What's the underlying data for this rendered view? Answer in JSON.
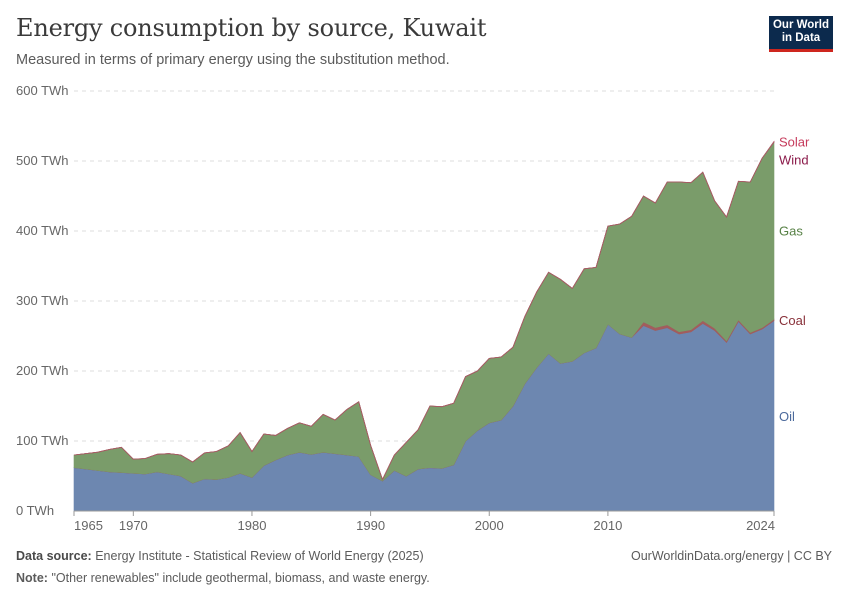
{
  "header": {
    "title": "Energy consumption by source, Kuwait",
    "subtitle": "Measured in terms of primary energy using the substitution method.",
    "logo_line1": "Our World",
    "logo_line2": "in Data"
  },
  "footer": {
    "source_label": "Data source:",
    "source_text": "Energy Institute - Statistical Review of World Energy (2025)",
    "note_label": "Note:",
    "note_text": "\"Other renewables\" include geothermal, biomass, and waste energy.",
    "credit": "OurWorldinData.org/energy | CC BY"
  },
  "chart_data": {
    "type": "area",
    "stacked": true,
    "title": "Energy consumption by source, Kuwait",
    "ylabel": "",
    "xlabel": "",
    "ylim": [
      0,
      600
    ],
    "xlim": [
      1965,
      2024
    ],
    "y_ticks": [
      0,
      100,
      200,
      300,
      400,
      500,
      600
    ],
    "y_tick_labels": [
      "0 TWh",
      "100 TWh",
      "200 TWh",
      "300 TWh",
      "400 TWh",
      "500 TWh",
      "600 TWh"
    ],
    "x_ticks": [
      1965,
      1970,
      1980,
      1990,
      2000,
      2010,
      2024
    ],
    "x_tick_labels": [
      "1965",
      "1970",
      "1980",
      "1990",
      "2000",
      "2010",
      "2024"
    ],
    "x": [
      1965,
      1966,
      1967,
      1968,
      1969,
      1970,
      1971,
      1972,
      1973,
      1974,
      1975,
      1976,
      1977,
      1978,
      1979,
      1980,
      1981,
      1982,
      1983,
      1984,
      1985,
      1986,
      1987,
      1988,
      1989,
      1990,
      1991,
      1992,
      1993,
      1994,
      1995,
      1996,
      1997,
      1998,
      1999,
      2000,
      2001,
      2002,
      2003,
      2004,
      2005,
      2006,
      2007,
      2008,
      2009,
      2010,
      2011,
      2012,
      2013,
      2014,
      2015,
      2016,
      2017,
      2018,
      2019,
      2020,
      2021,
      2022,
      2023,
      2024
    ],
    "series": [
      {
        "name": "Oil",
        "color": "#6d87b0",
        "label_color": "#4c6a9c",
        "values": [
          62,
          60,
          58,
          56,
          55,
          54,
          53,
          56,
          53,
          50,
          40,
          46,
          45,
          48,
          54,
          48,
          65,
          73,
          80,
          84,
          81,
          84,
          82,
          80,
          78,
          52,
          43,
          58,
          50,
          60,
          62,
          61,
          66,
          100,
          115,
          126,
          130,
          150,
          182,
          205,
          225,
          211,
          214,
          226,
          233,
          267,
          253,
          248,
          265,
          258,
          262,
          253,
          256,
          268,
          258,
          241,
          271,
          253,
          260,
          272
        ]
      },
      {
        "name": "Coal",
        "color": "#a25d5d",
        "label_color": "#883039",
        "values": [
          0,
          0,
          0,
          0,
          0,
          0,
          0,
          0,
          0,
          0,
          0,
          0,
          0,
          0,
          0,
          0,
          0,
          0,
          0,
          0,
          0,
          0,
          0,
          0,
          0,
          0,
          0,
          0,
          0,
          0,
          0,
          0,
          0,
          0,
          0,
          0,
          0,
          0,
          0,
          0,
          0,
          0,
          0,
          0,
          0,
          0,
          0,
          0,
          5,
          4,
          4,
          3,
          3,
          4,
          3,
          2,
          2,
          2,
          2,
          2
        ]
      },
      {
        "name": "Gas",
        "color": "#7a9c6a",
        "label_color": "#578145",
        "values": [
          18,
          22,
          26,
          32,
          36,
          20,
          22,
          25,
          29,
          30,
          30,
          37,
          40,
          45,
          58,
          37,
          45,
          35,
          38,
          42,
          40,
          54,
          48,
          65,
          78,
          42,
          2,
          22,
          48,
          56,
          88,
          88,
          88,
          92,
          85,
          92,
          90,
          84,
          96,
          108,
          116,
          120,
          104,
          120,
          115,
          140,
          157,
          173,
          180,
          178,
          204,
          214,
          210,
          212,
          182,
          177,
          198,
          215,
          242,
          253
        ]
      },
      {
        "name": "Wind",
        "color": "#8b1a4a",
        "label_color": "#8b1a4a",
        "values": [
          0,
          0,
          0,
          0,
          0,
          0,
          0,
          0,
          0,
          0,
          0,
          0,
          0,
          0,
          0,
          0,
          0,
          0,
          0,
          0,
          0,
          0,
          0,
          0,
          0,
          0,
          0,
          0,
          0,
          0,
          0,
          0,
          0,
          0,
          0,
          0,
          0,
          0,
          0,
          0,
          0,
          0,
          0,
          0,
          0,
          0,
          0,
          0,
          0,
          0,
          0,
          0,
          0,
          0,
          0,
          0,
          0,
          0,
          0,
          0.3
        ]
      },
      {
        "name": "Solar",
        "color": "#d26a85",
        "label_color": "#c63a5b",
        "values": [
          0,
          0,
          0,
          0,
          0,
          0,
          0,
          0,
          0,
          0,
          0,
          0,
          0,
          0,
          0,
          0,
          0,
          0,
          0,
          0,
          0,
          0,
          0,
          0,
          0,
          0,
          0,
          0,
          0,
          0,
          0,
          0,
          0,
          0,
          0,
          0,
          0,
          0,
          0,
          0,
          0,
          0,
          0,
          0,
          0,
          0,
          0,
          0,
          0,
          0,
          0,
          0,
          0,
          0,
          0,
          0,
          0,
          0,
          0,
          0.7
        ]
      }
    ],
    "legend_position": "right-end-labels"
  }
}
